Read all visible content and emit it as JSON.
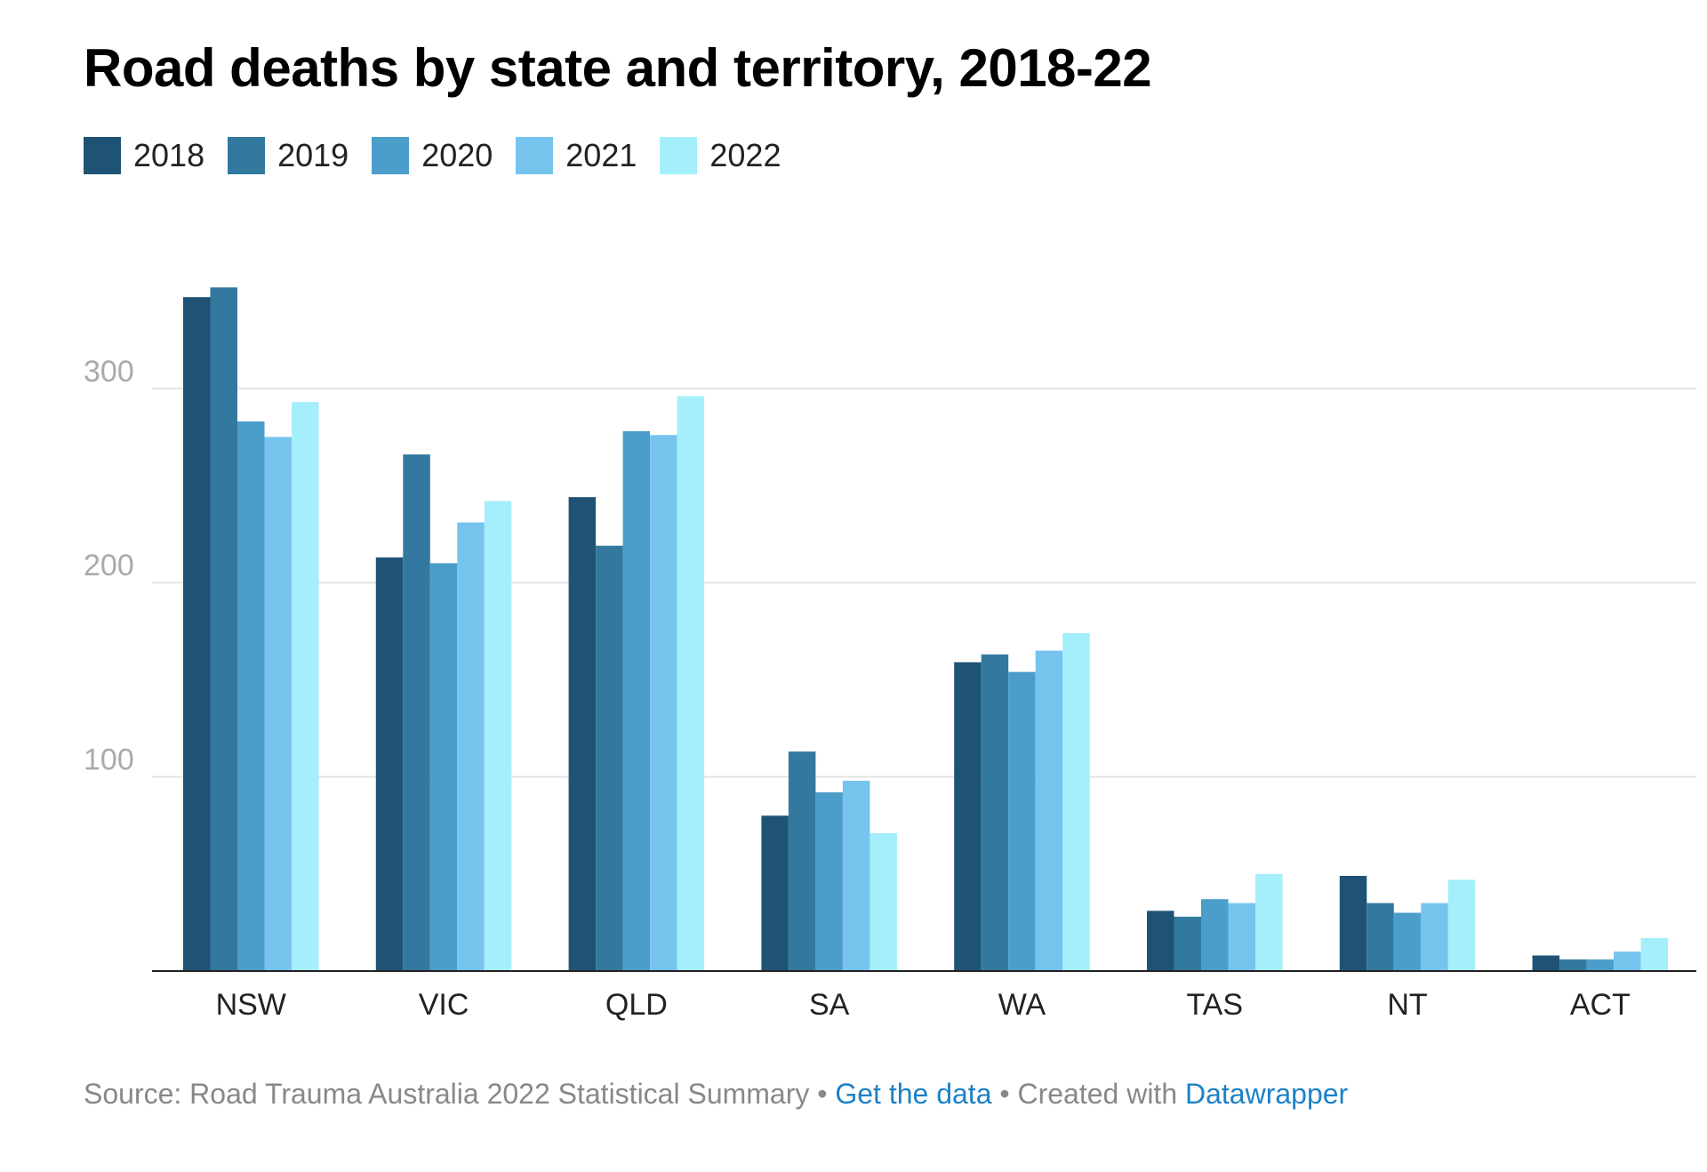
{
  "chart_data": {
    "type": "bar",
    "title": "Road deaths by state and territory, 2018-22",
    "categories": [
      "NSW",
      "VIC",
      "QLD",
      "SA",
      "WA",
      "TAS",
      "NT",
      "ACT"
    ],
    "series": [
      {
        "name": "2018",
        "color": "#1f5375",
        "values": [
          347,
          213,
          244,
          80,
          159,
          31,
          49,
          8
        ]
      },
      {
        "name": "2019",
        "color": "#33799f",
        "values": [
          352,
          266,
          219,
          113,
          163,
          28,
          35,
          6
        ]
      },
      {
        "name": "2020",
        "color": "#4b9dca",
        "values": [
          283,
          210,
          278,
          92,
          154,
          37,
          30,
          6
        ]
      },
      {
        "name": "2021",
        "color": "#76c4ee",
        "values": [
          275,
          231,
          276,
          98,
          165,
          35,
          35,
          10
        ]
      },
      {
        "name": "2022",
        "color": "#a5eefb",
        "values": [
          293,
          242,
          296,
          71,
          174,
          50,
          47,
          17
        ]
      }
    ],
    "yticks": [
      100,
      200,
      300
    ],
    "ylim": [
      0,
      360
    ],
    "grid": true,
    "legend": "top-left"
  },
  "footer": {
    "source": "Source: Road Trauma Australia 2022 Statistical Summary",
    "sep1": " • ",
    "get_data": "Get the data",
    "sep2": " • Created with ",
    "datawrapper": "Datawrapper"
  }
}
